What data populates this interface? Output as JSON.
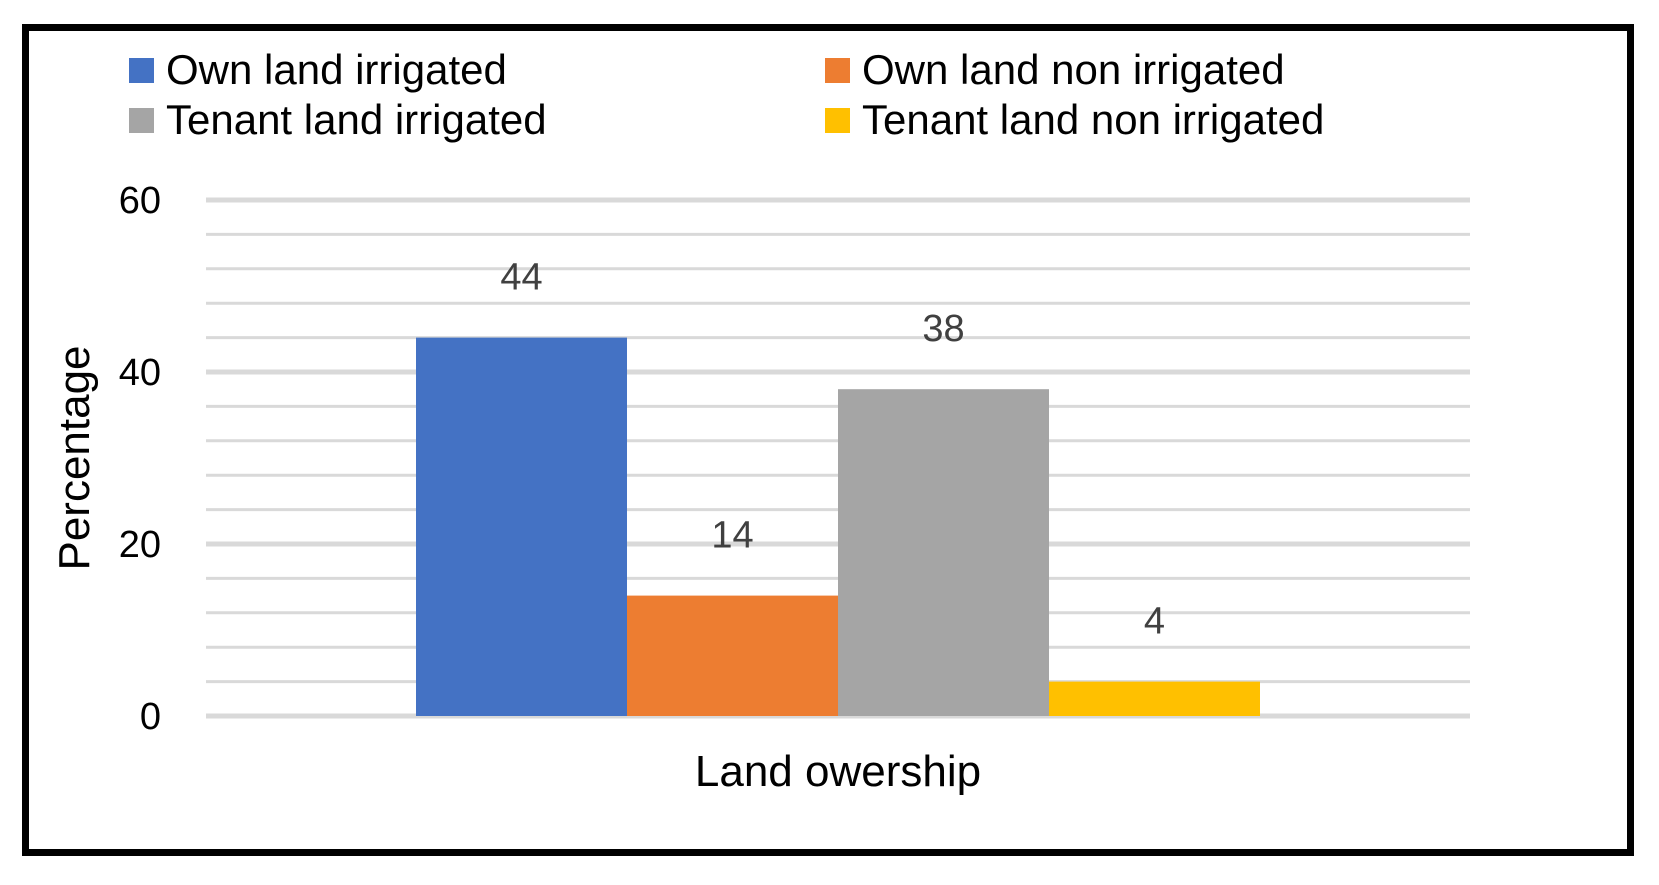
{
  "chart_data": {
    "type": "bar",
    "title": "",
    "xlabel": "Land owership",
    "ylabel": "Percentage",
    "ylim": [
      0,
      60
    ],
    "yticks": [
      0,
      20,
      40,
      60
    ],
    "minor_step": 4,
    "grid": true,
    "legend_position": "top",
    "categories": [
      "Land owership"
    ],
    "series": [
      {
        "name": "Own land irrigated",
        "values": [
          44
        ],
        "color": "#4472C4"
      },
      {
        "name": "Own land non irrigated",
        "values": [
          14
        ],
        "color": "#ED7D31"
      },
      {
        "name": "Tenant land irrigated",
        "values": [
          38
        ],
        "color": "#A5A5A5"
      },
      {
        "name": "Tenant land non irrigated",
        "values": [
          4
        ],
        "color": "#FFC000"
      }
    ],
    "data_labels": [
      "44",
      "14",
      "38",
      "4"
    ]
  }
}
